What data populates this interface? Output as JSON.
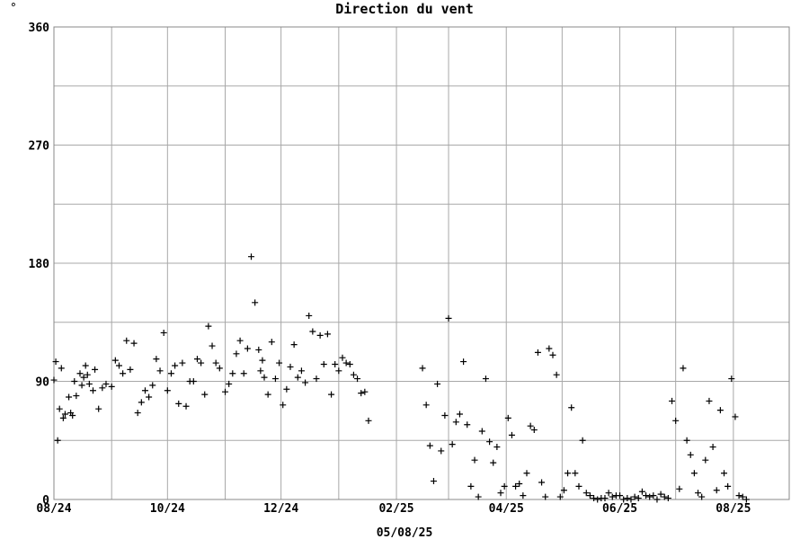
{
  "chart_data": {
    "type": "scatter",
    "title": "Direction du vent",
    "unit_label": "°",
    "footer_date": "05/08/25",
    "ylim": [
      0,
      360
    ],
    "y_ticks": [
      0,
      90,
      180,
      270,
      360
    ],
    "y_gridlines": [
      0,
      45,
      90,
      135,
      180,
      225,
      270,
      315,
      360
    ],
    "x_range": [
      "2024-08-01",
      "2025-08-31"
    ],
    "x_ticks": [
      {
        "label": "08/24",
        "date": "2024-08-01"
      },
      {
        "label": "10/24",
        "date": "2024-10-01"
      },
      {
        "label": "12/24",
        "date": "2024-12-01"
      },
      {
        "label": "02/25",
        "date": "2025-02-01"
      },
      {
        "label": "04/25",
        "date": "2025-04-01"
      },
      {
        "label": "06/25",
        "date": "2025-06-01"
      },
      {
        "label": "08/25",
        "date": "2025-08-01"
      }
    ],
    "x_gridlines": [
      "2024-08-01",
      "2024-09-01",
      "2024-10-01",
      "2024-11-01",
      "2024-12-01",
      "2025-01-01",
      "2025-02-01",
      "2025-03-01",
      "2025-04-01",
      "2025-05-01",
      "2025-06-01",
      "2025-07-01",
      "2025-08-01"
    ],
    "grid": true,
    "marker": "+",
    "marker_color": "#000000",
    "series": [
      {
        "x": [
          "2024-08-01",
          "2024-08-02",
          "2024-08-03",
          "2024-08-04",
          "2024-08-05",
          "2024-08-06",
          "2024-08-07",
          "2024-08-09",
          "2024-08-10",
          "2024-08-11",
          "2024-08-12",
          "2024-08-13",
          "2024-08-15",
          "2024-08-16",
          "2024-08-17",
          "2024-08-18",
          "2024-08-19",
          "2024-08-20",
          "2024-08-22",
          "2024-08-23",
          "2024-08-25",
          "2024-08-27",
          "2024-08-29",
          "2024-09-01",
          "2024-09-03",
          "2024-09-05",
          "2024-09-07",
          "2024-09-09",
          "2024-09-11",
          "2024-09-13",
          "2024-09-15",
          "2024-09-17",
          "2024-09-19",
          "2024-09-21",
          "2024-09-23",
          "2024-09-25",
          "2024-09-27",
          "2024-09-29",
          "2024-10-01",
          "2024-10-03",
          "2024-10-05",
          "2024-10-07",
          "2024-10-09",
          "2024-10-11",
          "2024-10-13",
          "2024-10-15",
          "2024-10-17",
          "2024-10-19",
          "2024-10-21",
          "2024-10-23",
          "2024-10-25",
          "2024-10-27",
          "2024-10-29",
          "2024-11-01",
          "2024-11-03",
          "2024-11-05",
          "2024-11-07",
          "2024-11-09",
          "2024-11-11",
          "2024-11-13",
          "2024-11-15",
          "2024-11-17",
          "2024-11-19",
          "2024-11-20",
          "2024-11-21",
          "2024-11-22",
          "2024-11-24",
          "2024-11-26",
          "2024-11-28",
          "2024-11-30",
          "2024-12-02",
          "2024-12-04",
          "2024-12-06",
          "2024-12-08",
          "2024-12-10",
          "2024-12-12",
          "2024-12-14",
          "2024-12-16",
          "2024-12-18",
          "2024-12-20",
          "2024-12-22",
          "2024-12-24",
          "2024-12-26",
          "2024-12-28",
          "2024-12-30",
          "2025-01-01",
          "2025-01-03",
          "2025-01-05",
          "2025-01-07",
          "2025-01-09",
          "2025-01-11",
          "2025-01-13",
          "2025-01-15",
          "2025-01-17"
        ],
        "y": [
          91,
          105,
          45,
          69,
          100,
          62,
          65,
          78,
          66,
          64,
          90,
          79,
          96,
          87,
          93,
          102,
          95,
          88,
          83,
          99,
          69,
          85,
          88,
          86,
          106,
          102,
          96,
          121,
          99,
          119,
          66,
          74,
          83,
          78,
          87,
          107,
          98,
          127,
          83,
          96,
          102,
          73,
          104,
          71,
          90,
          90,
          107,
          104,
          80,
          132,
          117,
          104,
          100,
          82,
          88,
          96,
          111,
          121,
          96,
          115,
          185,
          150,
          114,
          98,
          106,
          93,
          80,
          120,
          92,
          104,
          72,
          84,
          101,
          118,
          93,
          98,
          89,
          140,
          128,
          92,
          125,
          103,
          126,
          80,
          103,
          98,
          108,
          104,
          103,
          95,
          92,
          81,
          82,
          60
        ],
        "name": ""
      },
      {
        "x": [
          "2025-02-15",
          "2025-02-17",
          "2025-02-19",
          "2025-02-21",
          "2025-02-23",
          "2025-02-25",
          "2025-02-27",
          "2025-03-01",
          "2025-03-03",
          "2025-03-05",
          "2025-03-07",
          "2025-03-09",
          "2025-03-11",
          "2025-03-13",
          "2025-03-15",
          "2025-03-17",
          "2025-03-19",
          "2025-03-21",
          "2025-03-23",
          "2025-03-25",
          "2025-03-27",
          "2025-03-29",
          "2025-03-31",
          "2025-04-02",
          "2025-04-04",
          "2025-04-06",
          "2025-04-08",
          "2025-04-10",
          "2025-04-12",
          "2025-04-14",
          "2025-04-16",
          "2025-04-18",
          "2025-04-20",
          "2025-04-22",
          "2025-04-24",
          "2025-04-26",
          "2025-04-28",
          "2025-04-30",
          "2025-05-02",
          "2025-05-04",
          "2025-05-06",
          "2025-05-08",
          "2025-05-10",
          "2025-05-12",
          "2025-05-14",
          "2025-05-16",
          "2025-05-18",
          "2025-05-20",
          "2025-05-22",
          "2025-05-24",
          "2025-05-26",
          "2025-05-28",
          "2025-05-30",
          "2025-06-01",
          "2025-06-03",
          "2025-06-05",
          "2025-06-07",
          "2025-06-09",
          "2025-06-11",
          "2025-06-13",
          "2025-06-15",
          "2025-06-17",
          "2025-06-19",
          "2025-06-21",
          "2025-06-23",
          "2025-06-25",
          "2025-06-27",
          "2025-06-29",
          "2025-07-01",
          "2025-07-03",
          "2025-07-05",
          "2025-07-07",
          "2025-07-09",
          "2025-07-11",
          "2025-07-13",
          "2025-07-15",
          "2025-07-17",
          "2025-07-19",
          "2025-07-21",
          "2025-07-23",
          "2025-07-25",
          "2025-07-27",
          "2025-07-29",
          "2025-07-31",
          "2025-08-02",
          "2025-08-04",
          "2025-08-06",
          "2025-08-08"
        ],
        "y": [
          100,
          72,
          41,
          14,
          88,
          37,
          64,
          138,
          42,
          59,
          65,
          105,
          57,
          10,
          30,
          2,
          52,
          92,
          44,
          28,
          40,
          5,
          10,
          62,
          49,
          10,
          12,
          3,
          20,
          56,
          53,
          112,
          13,
          2,
          115,
          110,
          95,
          2,
          7,
          20,
          70,
          20,
          10,
          45,
          5,
          3,
          1,
          0,
          1,
          1,
          5,
          2,
          3,
          3,
          0,
          1,
          0,
          2,
          1,
          6,
          3,
          2,
          3,
          0,
          4,
          2,
          1,
          75,
          60,
          8,
          100,
          45,
          34,
          20,
          5,
          2,
          30,
          75,
          40,
          7,
          68,
          20,
          10,
          92,
          63,
          3,
          2,
          0
        ],
        "name": ""
      }
    ]
  }
}
